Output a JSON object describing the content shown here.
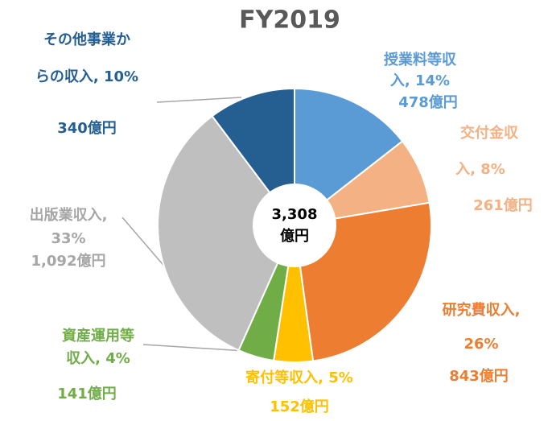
{
  "chart_data": {
    "type": "pie",
    "title": "FY2019",
    "labels": [
      [
        "授業料等収",
        "入, 14%"
      ],
      [
        "交付金収",
        "入, 8%"
      ],
      [
        "研究費収入,",
        "26%"
      ],
      [
        "寄付等収入, 5%"
      ],
      [
        "資産運用等",
        "収入, 4%"
      ],
      [
        "出版業収入,",
        "33%"
      ],
      [
        "その他事業か",
        "らの収入, 10%"
      ]
    ],
    "values": [
      478,
      261,
      843,
      152,
      141,
      1092,
      340
    ],
    "value_labels": [
      "478億円",
      "261億円",
      "843億円",
      "152億円",
      "141億円",
      "1,092億円",
      "340億円"
    ],
    "colors": [
      "#5b9bd5",
      "#f4b183",
      "#ed7d31",
      "#ffc000",
      "#70ad47",
      "#bfbfbf",
      "#255e91"
    ],
    "center_label": [
      "3,308",
      "億円"
    ]
  }
}
